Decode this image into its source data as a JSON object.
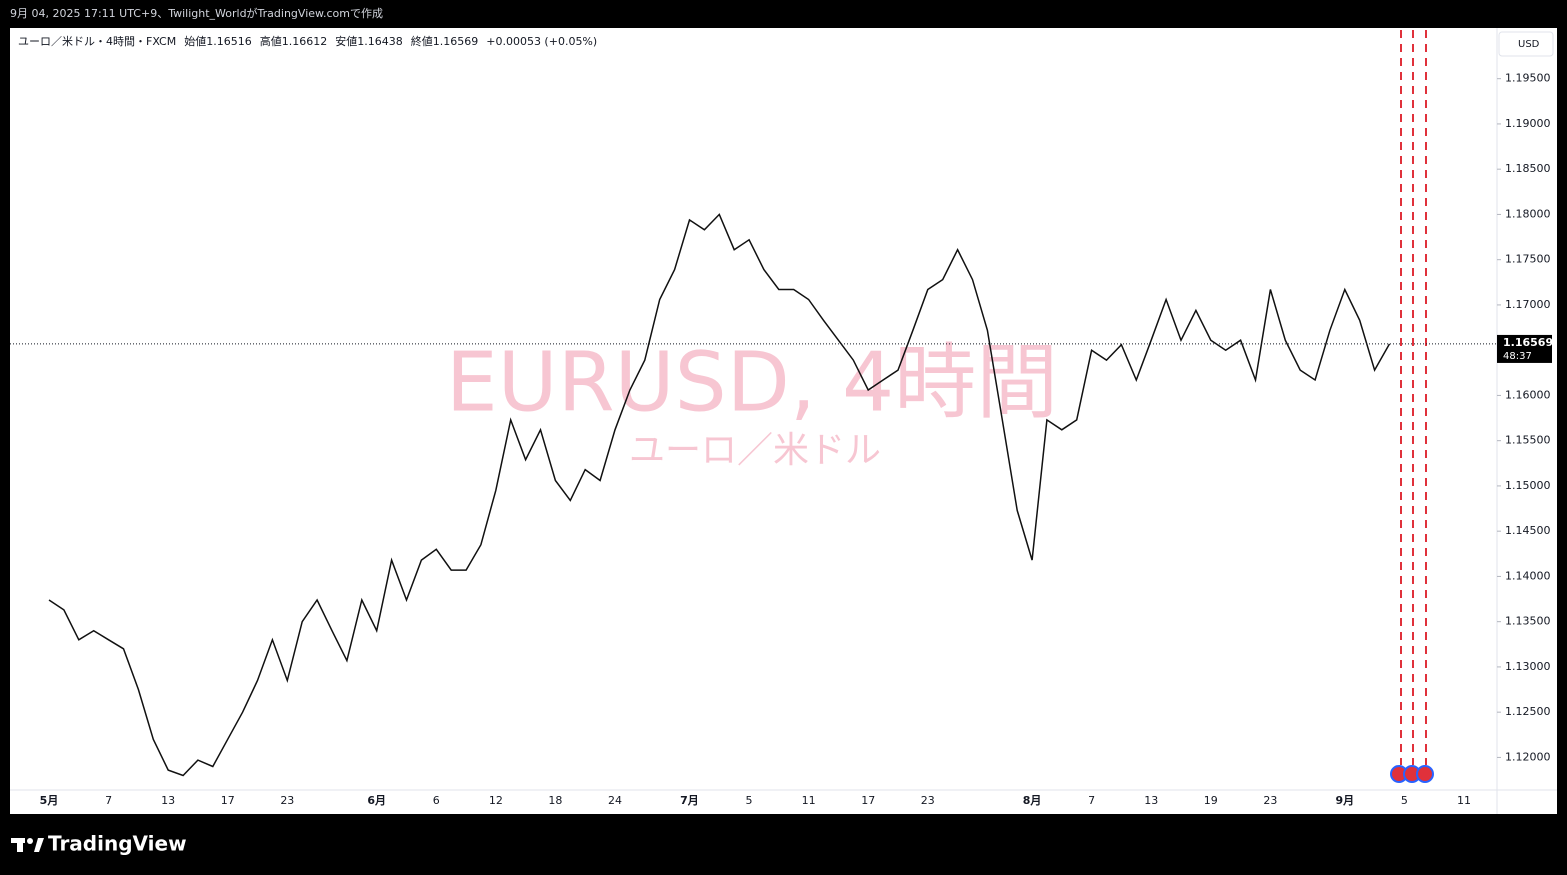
{
  "caption": "9月 04, 2025 17:11 UTC+9、Twilight_WorldがTradingView.comで作成",
  "brand": "TradingView",
  "chart_data": {
    "type": "line",
    "symbol": "ユーロ／米ドル・4時間・FXCM",
    "ohlc": [
      "始値1.16516",
      "高値1.16612",
      "安値1.16438",
      "終値1.16569",
      "+0.00053 (+0.05%)"
    ],
    "currency": "USD",
    "watermark": "EURUSD, 4時間",
    "watermark_sub": "ユーロ／米ドル",
    "countdown": "48:37",
    "color": "#111111",
    "grid": false,
    "categories": [
      "5月",
      null,
      null,
      null,
      "7",
      null,
      null,
      null,
      "13",
      null,
      null,
      null,
      "17",
      null,
      null,
      null,
      "23",
      null,
      null,
      null,
      null,
      null,
      "6月",
      null,
      null,
      null,
      "6",
      null,
      null,
      null,
      "12",
      null,
      null,
      null,
      "18",
      null,
      null,
      null,
      "24",
      null,
      null,
      null,
      null,
      "7月",
      null,
      null,
      null,
      "5",
      null,
      null,
      null,
      "11",
      null,
      null,
      null,
      "17",
      null,
      null,
      null,
      "23",
      null,
      null,
      null,
      null,
      null,
      null,
      "8月",
      null,
      null,
      null,
      "7",
      null,
      null,
      null,
      "13",
      null,
      null,
      null,
      "19",
      null,
      null,
      null,
      "23",
      null,
      null,
      null,
      null,
      "9月",
      null,
      null,
      null,
      "5",
      null,
      null,
      null,
      "11"
    ],
    "values": [
      1.1374,
      1.1363,
      1.133,
      1.134,
      1.133,
      1.132,
      1.1275,
      1.122,
      1.1186,
      1.118,
      1.1197,
      1.119,
      1.122,
      1.125,
      1.1285,
      1.133,
      1.1285,
      1.135,
      1.1374,
      1.134,
      1.1307,
      1.1374,
      1.134,
      1.1418,
      1.1374,
      1.1418,
      1.143,
      1.1407,
      1.1407,
      1.1435,
      1.1495,
      1.1573,
      1.1529,
      1.1562,
      1.1506,
      1.1484,
      1.1518,
      1.1506,
      1.1562,
      1.1606,
      1.1639,
      1.1706,
      1.1739,
      1.1794,
      1.1783,
      1.18,
      1.1761,
      1.1772,
      1.1739,
      1.1717,
      1.1717,
      1.1706,
      1.1683,
      1.1661,
      1.1639,
      1.1606,
      1.1617,
      1.1628,
      1.1672,
      1.1717,
      1.1728,
      1.1761,
      1.1728,
      1.1672,
      1.1573,
      1.1473,
      1.1418,
      1.1573,
      1.1562,
      1.1573,
      1.165,
      1.1639,
      1.1656,
      1.1617,
      1.1661,
      1.1706,
      1.1661,
      1.1694,
      1.1661,
      1.165,
      1.1661,
      1.1617,
      1.1717,
      1.1661,
      1.1628,
      1.1617,
      1.1672,
      1.1717,
      1.1683,
      1.1628,
      1.16569,
      null,
      null,
      null,
      null,
      null
    ],
    "ylim": [
      1.1164,
      1.2006
    ],
    "yticks": [
      {
        "value": 1.12,
        "label": "1.12000"
      },
      {
        "value": 1.125,
        "label": "1.12500"
      },
      {
        "value": 1.13,
        "label": "1.13000"
      },
      {
        "value": 1.135,
        "label": "1.13500"
      },
      {
        "value": 1.14,
        "label": "1.14000"
      },
      {
        "value": 1.145,
        "label": "1.14500"
      },
      {
        "value": 1.15,
        "label": "1.15000"
      },
      {
        "value": 1.155,
        "label": "1.15500"
      },
      {
        "value": 1.16,
        "label": "1.16000"
      },
      {
        "value": 1.165,
        "label": "1.16500"
      },
      {
        "value": 1.17,
        "label": "1.17000"
      },
      {
        "value": 1.175,
        "label": "1.17500"
      },
      {
        "value": 1.18,
        "label": "1.18000"
      },
      {
        "value": 1.185,
        "label": "1.18500"
      },
      {
        "value": 1.19,
        "label": "1.19000"
      },
      {
        "value": 1.195,
        "label": "1.19500"
      }
    ]
  }
}
